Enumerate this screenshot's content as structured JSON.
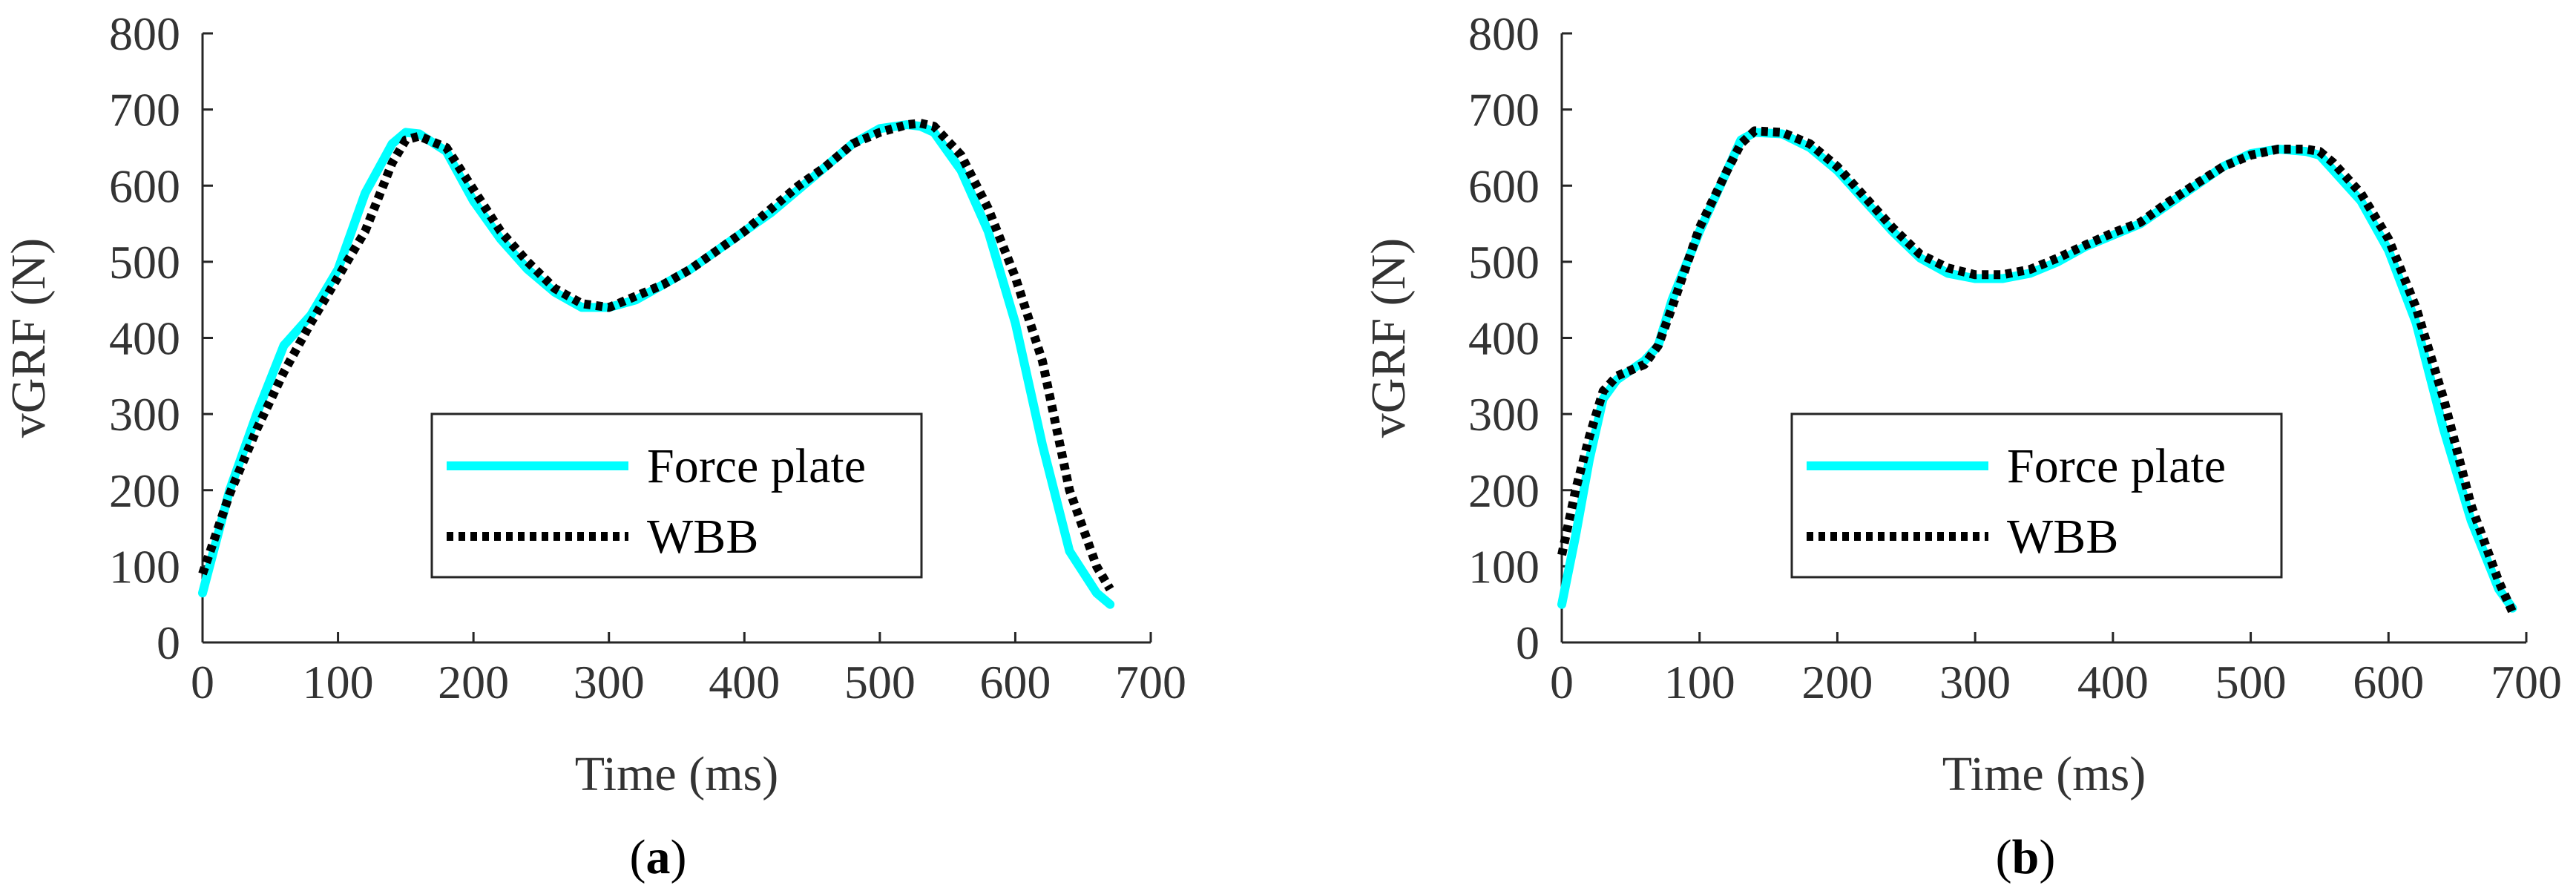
{
  "chart_data": [
    {
      "type": "line",
      "panel_label": "a",
      "xlabel": "Time (ms)",
      "ylabel": "vGRF (N)",
      "xlim": [
        0,
        700
      ],
      "ylim": [
        0,
        800
      ],
      "xticks": [
        "0",
        "100",
        "200",
        "300",
        "400",
        "500",
        "600",
        "700"
      ],
      "yticks": [
        "0",
        "100",
        "200",
        "300",
        "400",
        "500",
        "600",
        "700",
        "800"
      ],
      "grid": false,
      "legend_position": "lower-center",
      "series": [
        {
          "name": "Force plate",
          "color": "#00FFFF",
          "style": "solid",
          "x": [
            0,
            20,
            40,
            60,
            80,
            100,
            120,
            140,
            150,
            160,
            180,
            200,
            220,
            240,
            260,
            280,
            300,
            320,
            340,
            360,
            380,
            400,
            420,
            440,
            460,
            480,
            500,
            520,
            530,
            540,
            560,
            580,
            600,
            620,
            640,
            660,
            670
          ],
          "y": [
            65,
            200,
            300,
            390,
            430,
            490,
            590,
            655,
            670,
            668,
            645,
            580,
            530,
            490,
            460,
            440,
            440,
            450,
            470,
            490,
            515,
            540,
            565,
            595,
            625,
            655,
            675,
            680,
            678,
            670,
            620,
            540,
            420,
            260,
            120,
            65,
            50
          ]
        },
        {
          "name": "WBB",
          "color": "#000000",
          "style": "dotted",
          "x": [
            0,
            20,
            40,
            60,
            80,
            100,
            120,
            140,
            150,
            160,
            180,
            200,
            220,
            240,
            260,
            280,
            300,
            320,
            340,
            360,
            380,
            400,
            420,
            440,
            460,
            480,
            500,
            520,
            530,
            540,
            560,
            580,
            600,
            620,
            640,
            660,
            670
          ],
          "y": [
            90,
            195,
            280,
            355,
            420,
            480,
            540,
            630,
            660,
            665,
            650,
            595,
            540,
            500,
            465,
            445,
            440,
            455,
            470,
            490,
            515,
            540,
            570,
            600,
            625,
            655,
            670,
            680,
            682,
            678,
            640,
            570,
            480,
            370,
            200,
            100,
            70
          ]
        }
      ]
    },
    {
      "type": "line",
      "panel_label": "b",
      "xlabel": "Time (ms)",
      "ylabel": "vGRF (N)",
      "xlim": [
        0,
        700
      ],
      "ylim": [
        0,
        800
      ],
      "xticks": [
        "0",
        "100",
        "200",
        "300",
        "400",
        "500",
        "600",
        "700"
      ],
      "yticks": [
        "0",
        "100",
        "200",
        "300",
        "400",
        "500",
        "600",
        "700",
        "800"
      ],
      "grid": false,
      "legend_position": "lower-center",
      "series": [
        {
          "name": "Force plate",
          "color": "#00FFFF",
          "style": "solid",
          "x": [
            0,
            10,
            20,
            30,
            40,
            60,
            70,
            80,
            100,
            120,
            130,
            140,
            160,
            180,
            200,
            220,
            240,
            260,
            280,
            300,
            320,
            340,
            360,
            380,
            400,
            420,
            440,
            460,
            480,
            500,
            520,
            540,
            550,
            560,
            580,
            600,
            620,
            640,
            660,
            680,
            690
          ],
          "y": [
            50,
            140,
            240,
            320,
            345,
            370,
            390,
            450,
            540,
            620,
            660,
            670,
            668,
            650,
            620,
            580,
            540,
            505,
            485,
            478,
            478,
            485,
            500,
            520,
            535,
            550,
            575,
            600,
            625,
            642,
            648,
            645,
            640,
            620,
            580,
            515,
            420,
            280,
            160,
            70,
            45
          ]
        },
        {
          "name": "WBB",
          "color": "#000000",
          "style": "dotted",
          "x": [
            0,
            10,
            20,
            30,
            40,
            60,
            70,
            80,
            100,
            120,
            130,
            140,
            160,
            180,
            200,
            220,
            240,
            260,
            280,
            300,
            320,
            340,
            360,
            380,
            400,
            420,
            440,
            460,
            480,
            500,
            520,
            540,
            550,
            560,
            580,
            600,
            620,
            640,
            660,
            680,
            690
          ],
          "y": [
            115,
            200,
            270,
            330,
            350,
            365,
            390,
            440,
            545,
            620,
            655,
            672,
            670,
            655,
            625,
            585,
            545,
            510,
            492,
            483,
            483,
            490,
            505,
            522,
            538,
            552,
            578,
            602,
            625,
            640,
            648,
            648,
            645,
            630,
            590,
            530,
            440,
            320,
            180,
            80,
            40
          ]
        }
      ]
    }
  ]
}
